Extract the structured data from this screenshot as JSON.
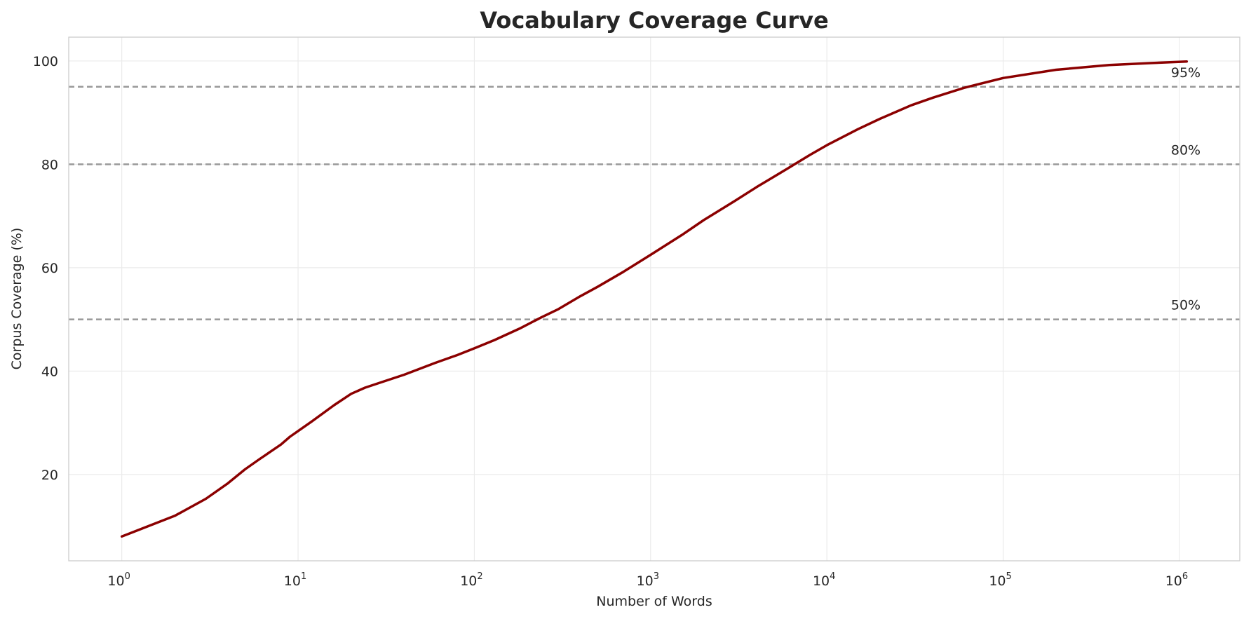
{
  "chart_data": {
    "type": "line",
    "title": "Vocabulary Coverage Curve",
    "xlabel": "Number of Words",
    "ylabel": "Corpus Coverage (%)",
    "x_scale": "log",
    "xlim": [
      0.5,
      2200000
    ],
    "ylim": [
      3.3,
      104.6
    ],
    "grid": true,
    "x_ticks": [
      {
        "value": 1,
        "base": "10",
        "exp": "0"
      },
      {
        "value": 10,
        "base": "10",
        "exp": "1"
      },
      {
        "value": 100,
        "base": "10",
        "exp": "2"
      },
      {
        "value": 1000,
        "base": "10",
        "exp": "3"
      },
      {
        "value": 10000,
        "base": "10",
        "exp": "4"
      },
      {
        "value": 100000,
        "base": "10",
        "exp": "5"
      },
      {
        "value": 1000000,
        "base": "10",
        "exp": "6"
      }
    ],
    "y_ticks": [
      20,
      40,
      60,
      80,
      100
    ],
    "line_color": "#8b0000",
    "reference_color": "#999999",
    "series": [
      {
        "x": [
          1,
          2,
          3,
          4,
          5,
          6,
          8,
          9,
          10,
          12,
          16,
          20,
          24,
          30,
          40,
          60,
          80,
          100,
          130,
          180,
          240,
          300,
          400,
          500,
          700,
          1000,
          1500,
          2000,
          3000,
          4000,
          6000,
          8000,
          10000,
          15000,
          20000,
          30000,
          40000,
          60000,
          100000,
          200000,
          400000,
          700000,
          1100000
        ],
        "y": [
          8,
          12,
          15.3,
          18.3,
          21.0,
          22.9,
          25.8,
          27.3,
          28.4,
          30.3,
          33.4,
          35.6,
          36.8,
          37.9,
          39.3,
          41.6,
          43.1,
          44.4,
          46.0,
          48.2,
          50.4,
          52.0,
          54.5,
          56.3,
          59.2,
          62.5,
          66.3,
          69.2,
          72.9,
          75.6,
          79.2,
          81.8,
          83.7,
          86.8,
          88.8,
          91.4,
          92.9,
          94.8,
          96.7,
          98.3,
          99.2,
          99.6,
          99.9
        ]
      }
    ],
    "reference_lines": [
      {
        "y": 95,
        "label": "95%"
      },
      {
        "y": 80,
        "label": "80%"
      },
      {
        "y": 50,
        "label": "50%"
      }
    ]
  }
}
